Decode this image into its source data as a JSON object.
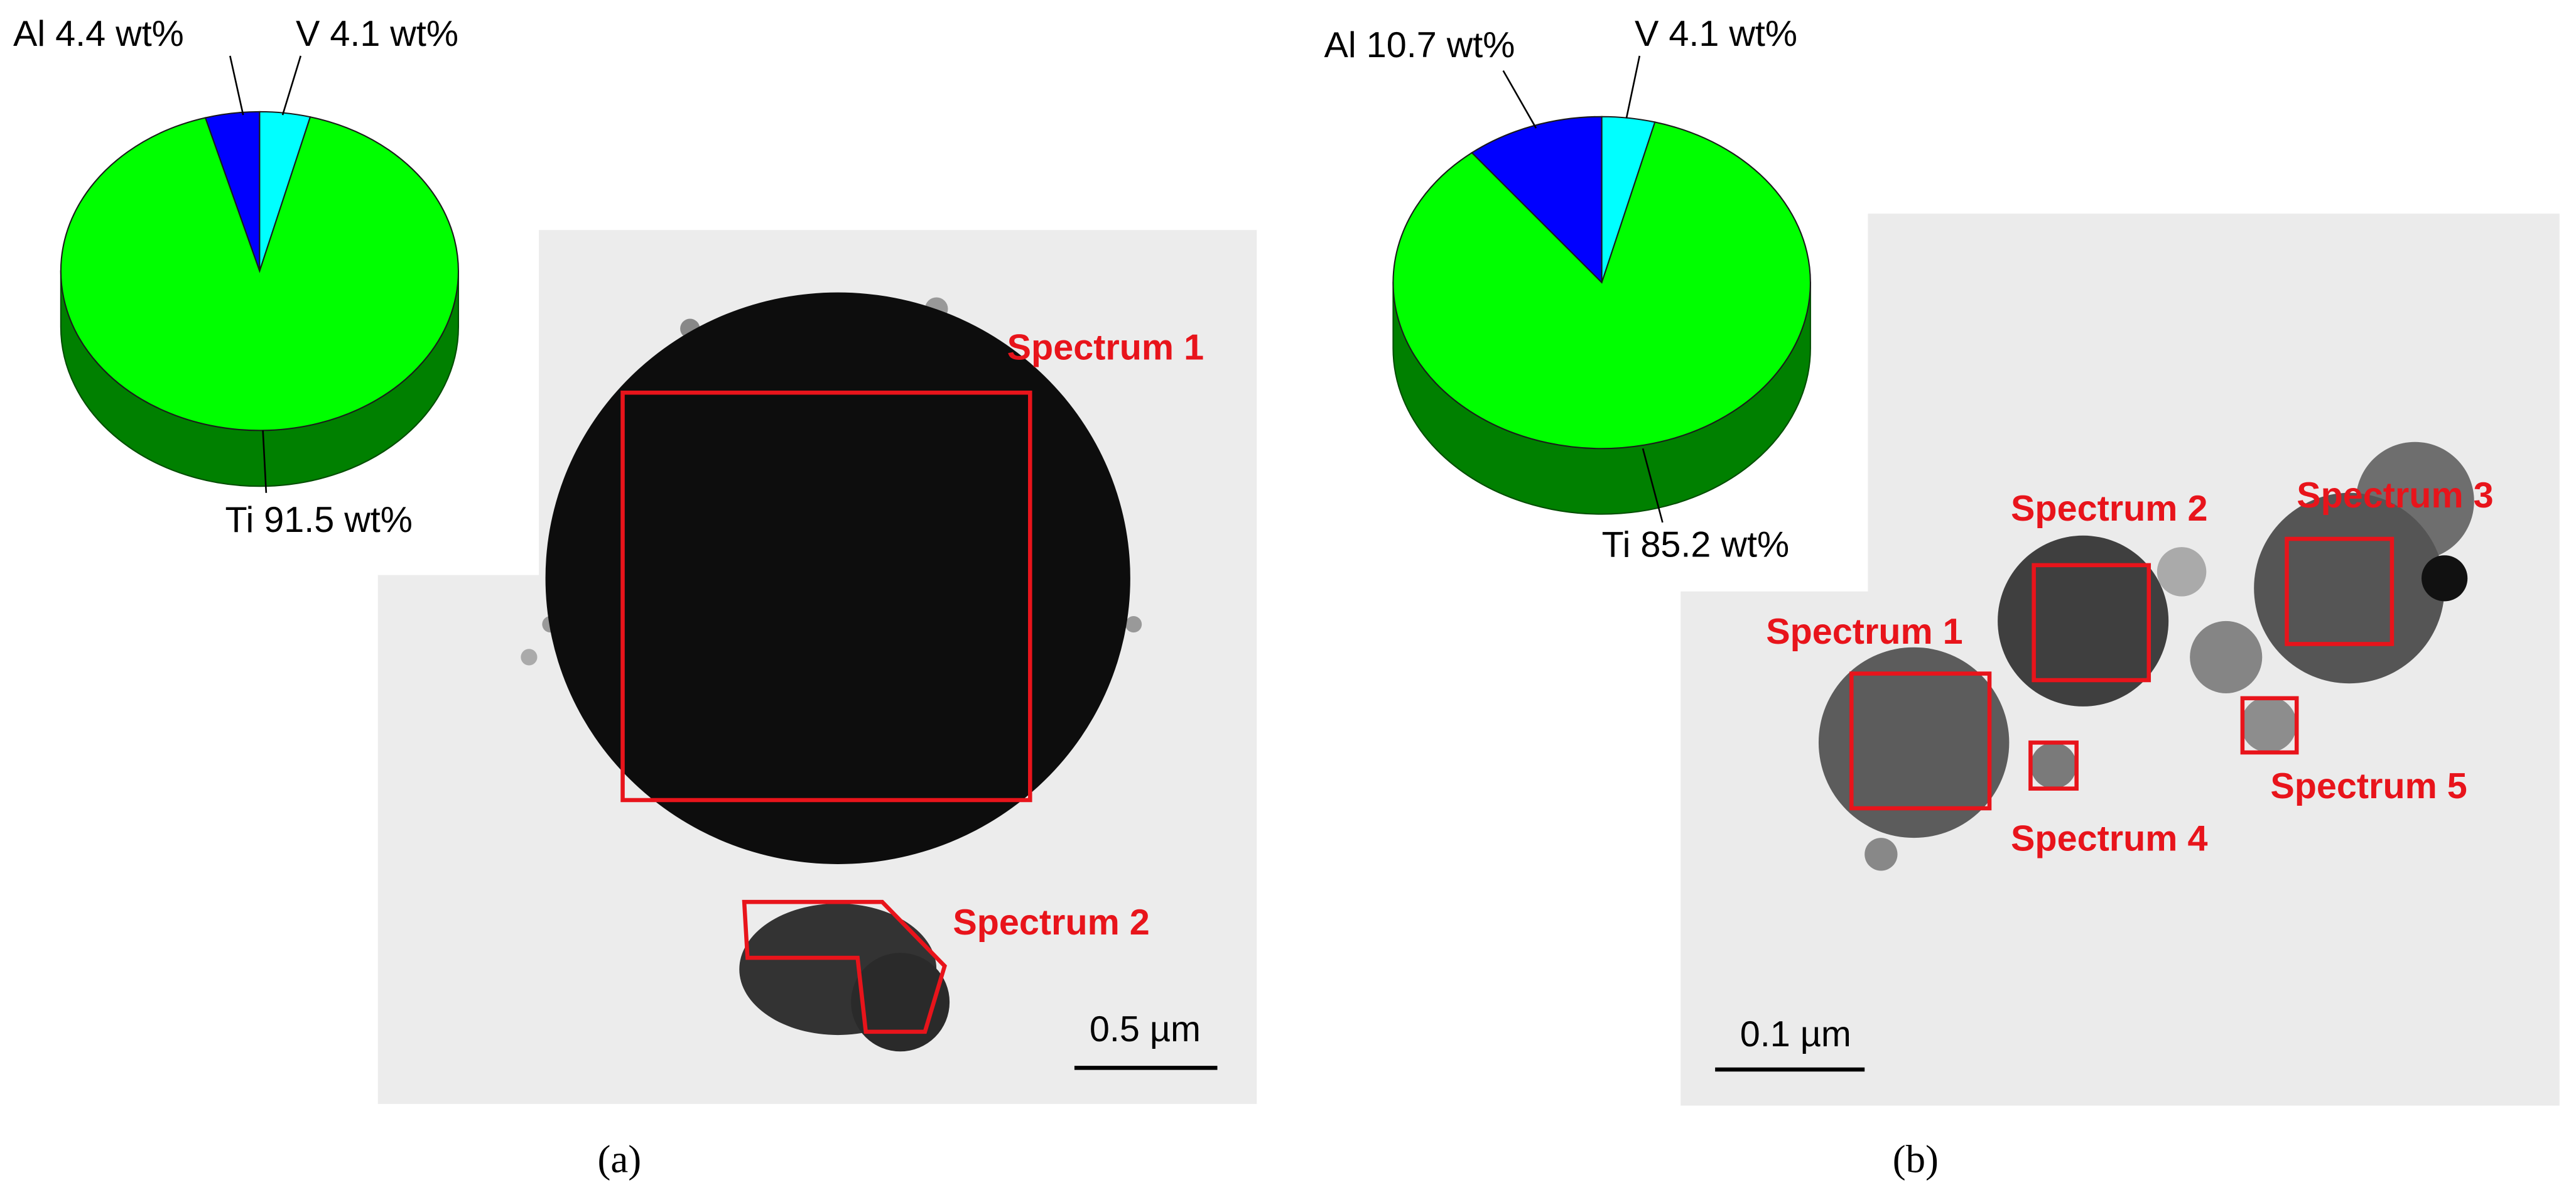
{
  "chart_data": [
    {
      "type": "pie",
      "values": [
        4.4,
        4.1,
        91.5
      ],
      "value_labels": [
        "Al 4.4 wt%",
        "V 4.1 wt%",
        "Ti 91.5 wt%"
      ],
      "colors": [
        "#0000ff",
        "#00ffff",
        "#00ff00"
      ]
    },
    {
      "type": "pie",
      "values": [
        10.7,
        4.1,
        85.2
      ],
      "value_labels": [
        "Al 10.7 wt%",
        "V 4.1 wt%",
        "Ti 85.2 wt%"
      ],
      "colors": [
        "#0000ff",
        "#00ffff",
        "#00ff00"
      ]
    }
  ],
  "panels": [
    {
      "annotations": [
        "Spectrum 1",
        "Spectrum 2"
      ],
      "scale_bar": "0.5 µm",
      "caption": "(a)"
    },
    {
      "annotations": [
        "Spectrum 1",
        "Spectrum 2",
        "Spectrum 3",
        "Spectrum 4",
        "Spectrum 5"
      ],
      "scale_bar": "0.1 µm",
      "caption": "(b)"
    }
  ]
}
